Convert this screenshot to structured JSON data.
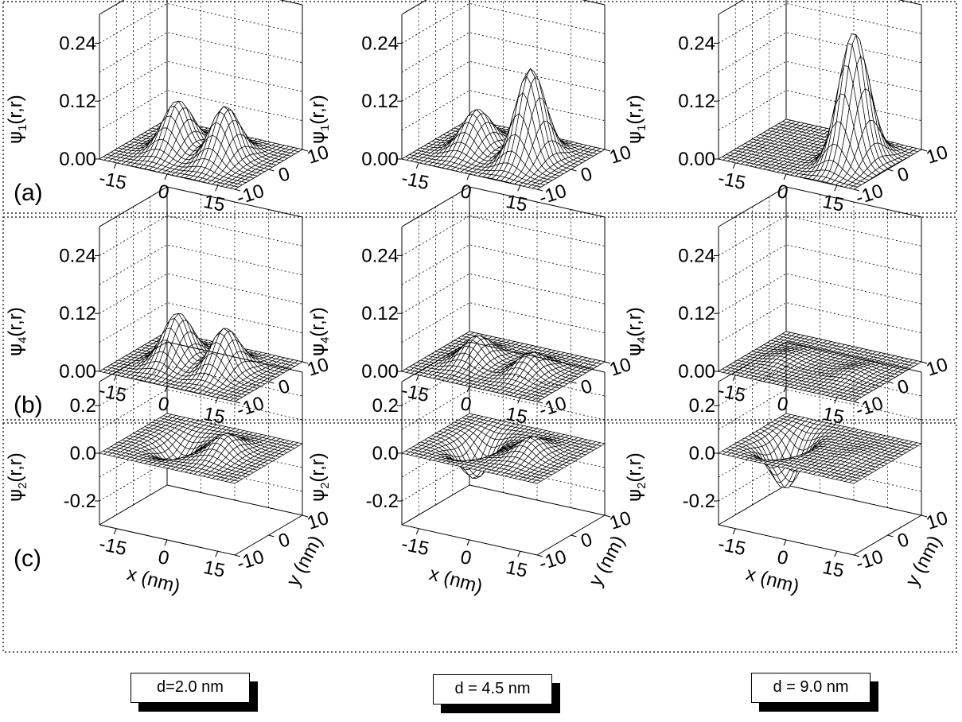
{
  "rows": [
    {
      "id": "a",
      "panel_label": "(a)",
      "ylabel_base": "ψ",
      "ylabel_sub": "1",
      "ylabel_tail": "(r,r)",
      "z_ticks": [
        "0.24",
        "0.12",
        "0.00"
      ],
      "z_range": [
        0,
        0.3
      ],
      "x_ticks": [
        "-15",
        "0",
        "15"
      ],
      "y_ticks": [
        "-10",
        "0",
        "10"
      ]
    },
    {
      "id": "b",
      "panel_label": "(b)",
      "ylabel_base": "ψ",
      "ylabel_sub": "4",
      "ylabel_tail": "(r,r)",
      "z_ticks": [
        "0.24",
        "0.12",
        "0.00"
      ],
      "z_range": [
        0,
        0.3
      ],
      "x_ticks": [
        "-15",
        "0",
        "15"
      ],
      "y_ticks": [
        "-10",
        "0",
        "10"
      ]
    },
    {
      "id": "c",
      "panel_label": "(c)",
      "ylabel_base": "ψ",
      "ylabel_sub": "2",
      "ylabel_tail": "(r,r)",
      "z_ticks": [
        "0.2",
        "0.0",
        "-0.2"
      ],
      "z_range": [
        -0.3,
        0.3
      ],
      "x_ticks": [
        "-15",
        "0",
        "15"
      ],
      "y_ticks": [
        "-10",
        "0",
        "10"
      ],
      "xlabel": "x (nm)",
      "ylabel_axis": "y (nm)"
    }
  ],
  "columns": [
    "d=2.0 nm",
    "d = 4.5 nm",
    "d = 9.0 nm"
  ],
  "chart_data": {
    "type": "surface-grid",
    "x_range": [
      -20,
      20
    ],
    "y_range": [
      -10,
      10
    ],
    "panels": [
      {
        "row": "a",
        "col": 0,
        "d_nm": 2.0,
        "peaks": [
          {
            "x": -7,
            "y": 0,
            "amp": 0.1
          },
          {
            "x": 7,
            "y": 0,
            "amp": 0.11
          }
        ]
      },
      {
        "row": "a",
        "col": 1,
        "d_nm": 4.5,
        "peaks": [
          {
            "x": -8,
            "y": 0,
            "amp": 0.08
          },
          {
            "x": 8,
            "y": 0,
            "amp": 0.19
          }
        ]
      },
      {
        "row": "a",
        "col": 2,
        "d_nm": 9.0,
        "peaks": [
          {
            "x": 10,
            "y": 0,
            "amp": 0.27
          }
        ]
      },
      {
        "row": "b",
        "col": 0,
        "d_nm": 2.0,
        "peaks": [
          {
            "x": -7,
            "y": 0,
            "amp": 0.1
          },
          {
            "x": 7,
            "y": 0,
            "amp": 0.09
          }
        ]
      },
      {
        "row": "b",
        "col": 1,
        "d_nm": 4.5,
        "peaks": [
          {
            "x": -8,
            "y": 0,
            "amp": 0.05
          },
          {
            "x": 8,
            "y": 0,
            "amp": 0.04
          }
        ]
      },
      {
        "row": "b",
        "col": 2,
        "d_nm": 9.0,
        "peaks": [
          {
            "x": -10,
            "y": 0,
            "amp": 0.01
          },
          {
            "x": 10,
            "y": 0,
            "amp": 0.01
          }
        ]
      },
      {
        "row": "c",
        "col": 0,
        "d_nm": 2.0,
        "peaks": [
          {
            "x": -7,
            "y": 0,
            "amp": -0.09
          },
          {
            "x": 7,
            "y": 0,
            "amp": 0.08
          }
        ]
      },
      {
        "row": "c",
        "col": 1,
        "d_nm": 4.5,
        "peaks": [
          {
            "x": -8,
            "y": 0,
            "amp": -0.15
          },
          {
            "x": 8,
            "y": 0,
            "amp": 0.07
          }
        ]
      },
      {
        "row": "c",
        "col": 2,
        "d_nm": 9.0,
        "peaks": [
          {
            "x": -10,
            "y": 0,
            "amp": -0.2
          },
          {
            "x": 10,
            "y": 0,
            "amp": 0.01
          }
        ]
      }
    ]
  }
}
